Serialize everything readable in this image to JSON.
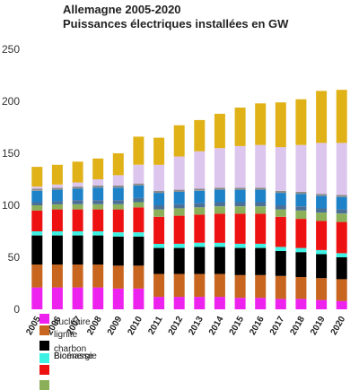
{
  "chart_data": {
    "type": "bar",
    "stacked": true,
    "title": "Allemagne 2005-2020",
    "subtitle": "Puissances électriques installées en GW",
    "xlabel": "",
    "ylabel": "",
    "ylim": [
      0,
      250
    ],
    "yticks": [
      0,
      50,
      100,
      150,
      200,
      250
    ],
    "grid": false,
    "legend_position": "bottom-left",
    "categories": [
      "2005",
      "2006",
      "2007",
      "2008",
      "2009",
      "2010",
      "2011",
      "2012",
      "2013",
      "2014",
      "2015",
      "2016",
      "2017",
      "2018",
      "2019",
      "2020"
    ],
    "series": [
      {
        "name": "nucléaire",
        "color": "#ee22ee",
        "values": [
          21,
          21,
          21,
          21,
          20,
          20,
          12,
          12,
          12,
          12,
          11,
          11,
          10,
          10,
          9,
          8
        ]
      },
      {
        "name": "lignite",
        "color": "#c8651e",
        "values": [
          22,
          22,
          22,
          22,
          22,
          22,
          22,
          22,
          22,
          22,
          22,
          22,
          22,
          21,
          21,
          21
        ]
      },
      {
        "name": "charbon",
        "color": "#000000",
        "values": [
          28,
          28,
          28,
          28,
          28,
          28,
          25,
          25,
          26,
          26,
          26,
          26,
          24,
          24,
          23,
          21
        ]
      },
      {
        "name": "",
        "color": "#3ff1e3",
        "values": [
          4,
          4,
          4,
          4,
          4,
          4,
          4,
          4,
          4,
          4,
          4,
          4,
          4,
          4,
          4,
          4
        ]
      },
      {
        "name": "",
        "color": "#ee1111",
        "values": [
          20,
          21,
          21,
          21,
          22,
          24,
          26,
          27,
          27,
          28,
          29,
          29,
          29,
          28,
          28,
          30
        ]
      },
      {
        "name": "",
        "color": "#8cb05a",
        "values": [
          5,
          5,
          5,
          5,
          5,
          5,
          7,
          7,
          7,
          7,
          7,
          7,
          7,
          8,
          8,
          8
        ]
      },
      {
        "name": "",
        "color": "#4a7098",
        "values": [
          3,
          3,
          4,
          4,
          4,
          4,
          4,
          4,
          4,
          4,
          4,
          4,
          4,
          4,
          4,
          4
        ]
      },
      {
        "name": "",
        "color": "#1e82c8",
        "values": [
          11,
          11,
          11,
          12,
          12,
          12,
          12,
          12,
          12,
          12,
          12,
          12,
          12,
          12,
          12,
          12
        ]
      },
      {
        "name": "",
        "color": "#8c8c8c",
        "values": [
          2,
          2,
          2,
          2,
          2,
          2,
          2,
          2,
          2,
          2,
          2,
          2,
          2,
          2,
          2,
          2
        ]
      },
      {
        "name": "",
        "color": "#ddc6ee",
        "values": [
          2,
          3,
          4,
          6,
          10,
          18,
          25,
          32,
          36,
          38,
          40,
          41,
          42,
          45,
          49,
          50
        ]
      },
      {
        "name": "",
        "color": "#e0b218",
        "values": [
          19,
          19,
          20,
          20,
          21,
          27,
          26,
          30,
          30,
          33,
          37,
          40,
          43,
          44,
          50,
          51
        ]
      }
    ],
    "legend": [
      {
        "label": "nucléaire",
        "color": "#ee22ee"
      },
      {
        "label": "lignite",
        "color": "#c8651e"
      },
      {
        "label": "charbon",
        "color": "#000000"
      },
      {
        "label": "Biomasse",
        "color": "#3ff1e3"
      },
      {
        "label": "Bioénergie",
        "color": "#ee1111"
      },
      {
        "label": "",
        "color": "#8cb05a"
      }
    ]
  }
}
